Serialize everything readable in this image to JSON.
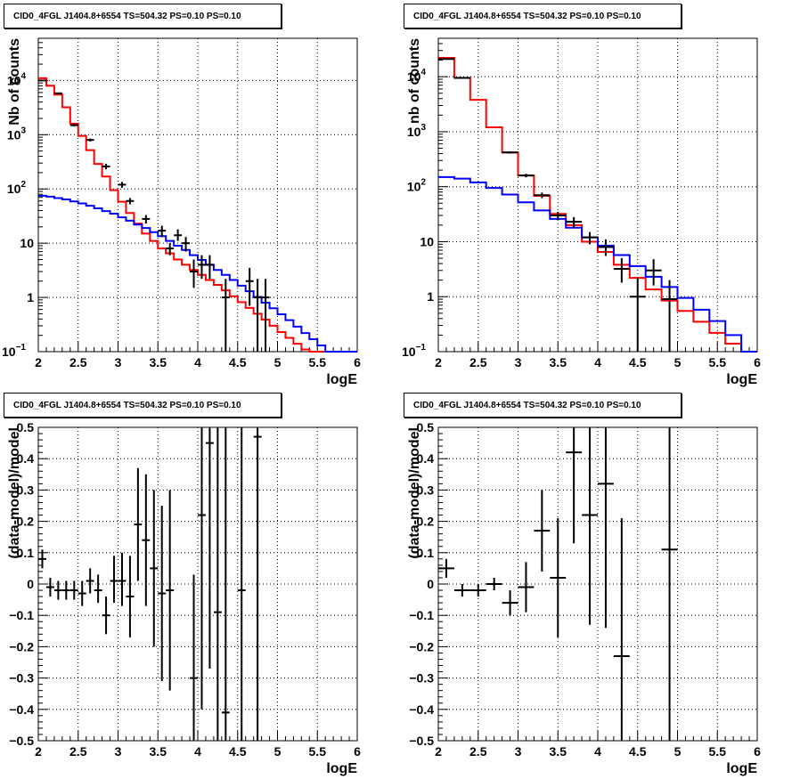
{
  "pads": [
    {
      "id": "p1",
      "title": "CID0_4FGL J1404.8+6554 TS=504.32 PS=0.10 PS=0.10",
      "chart_data": {
        "type": "line",
        "scale": "log",
        "xlabel": "logE",
        "ylabel": "Nb of counts",
        "xlim": [
          2,
          6
        ],
        "ylim": [
          0.1,
          60000
        ],
        "grid": true,
        "xticks": [
          "2",
          "2.5",
          "3",
          "3.5",
          "4",
          "4.5",
          "5",
          "5.5",
          "6"
        ],
        "yticks": [
          {
            "v": 0.1,
            "l": "10",
            "sup": "−1"
          },
          {
            "v": 1,
            "l": "1",
            "sup": ""
          },
          {
            "v": 10,
            "l": "10",
            "sup": ""
          },
          {
            "v": 100,
            "l": "10",
            "sup": "2"
          },
          {
            "v": 1000,
            "l": "10",
            "sup": "3"
          },
          {
            "v": 10000,
            "l": "10",
            "sup": "4"
          }
        ],
        "bin_width": 0.1,
        "series": [
          {
            "color": "#ff0000",
            "values": [
              11000,
              8000,
              5500,
              3200,
              1600,
              950,
              520,
              290,
              170,
              95,
              58,
              36,
              23,
              15,
              11,
              8,
              6.5,
              5,
              4,
              3.2,
              2.6,
              2.1,
              1.7,
              1.35,
              1.05,
              0.82,
              0.64,
              0.5,
              0.39,
              0.3,
              0.23,
              0.18,
              0.14,
              0.11,
              0.1,
              0.1
            ]
          },
          {
            "color": "#0000ff",
            "values": [
              75,
              72,
              68,
              64,
              59,
              54,
              49,
              44,
              39,
              35,
              30,
              26,
              22,
              19,
              16,
              13.5,
              11,
              9,
              7.5,
              6,
              4.9,
              4,
              3.2,
              2.6,
              2.1,
              1.65,
              1.3,
              1.02,
              0.8,
              0.63,
              0.49,
              0.38,
              0.29,
              0.22,
              0.17,
              0.13,
              0.1,
              0.1,
              0.1,
              0.1
            ]
          }
        ],
        "points": [
          {
            "x": 2.05,
            "y": 10000,
            "lo": 9800,
            "hi": 10200
          },
          {
            "x": 2.25,
            "y": 5800,
            "lo": 5650,
            "hi": 5950
          },
          {
            "x": 2.45,
            "y": 1500,
            "lo": 1420,
            "hi": 1580
          },
          {
            "x": 2.65,
            "y": 800,
            "lo": 750,
            "hi": 850
          },
          {
            "x": 2.85,
            "y": 260,
            "lo": 230,
            "hi": 290
          },
          {
            "x": 3.05,
            "y": 120,
            "lo": 105,
            "hi": 135
          },
          {
            "x": 3.15,
            "y": 60,
            "lo": 52,
            "hi": 68
          },
          {
            "x": 3.35,
            "y": 28,
            "lo": 23,
            "hi": 33
          },
          {
            "x": 3.55,
            "y": 17,
            "lo": 13,
            "hi": 21
          },
          {
            "x": 3.65,
            "y": 8,
            "lo": 6,
            "hi": 10
          },
          {
            "x": 3.75,
            "y": 14,
            "lo": 11,
            "hi": 18
          },
          {
            "x": 3.85,
            "y": 10,
            "lo": 7,
            "hi": 13
          },
          {
            "x": 3.95,
            "y": 3,
            "lo": 1.5,
            "hi": 5
          },
          {
            "x": 4.05,
            "y": 4,
            "lo": 2.2,
            "hi": 6
          },
          {
            "x": 4.15,
            "y": 4,
            "lo": 2.2,
            "hi": 6
          },
          {
            "x": 4.35,
            "y": 1,
            "lo": 0.1,
            "hi": 2.2
          },
          {
            "x": 4.65,
            "y": 2,
            "lo": 0.7,
            "hi": 3.5
          },
          {
            "x": 4.75,
            "y": 1,
            "lo": 0.1,
            "hi": 2.2
          },
          {
            "x": 4.85,
            "y": 1,
            "lo": 0.1,
            "hi": 2.2
          }
        ]
      }
    },
    {
      "id": "p2",
      "title": "CID0_4FGL J1404.8+6554 TS=504.32 PS=0.10 PS=0.10",
      "chart_data": {
        "type": "line",
        "scale": "log",
        "xlabel": "logE",
        "ylabel": "nb of counts",
        "xlim": [
          2,
          6
        ],
        "ylim": [
          0.1,
          50000
        ],
        "grid": true,
        "xticks": [
          "2",
          "2.5",
          "3",
          "3.5",
          "4",
          "4.5",
          "5",
          "5.5",
          "6"
        ],
        "yticks": [
          {
            "v": 0.1,
            "l": "10",
            "sup": "−1"
          },
          {
            "v": 1,
            "l": "1",
            "sup": ""
          },
          {
            "v": 10,
            "l": "10",
            "sup": ""
          },
          {
            "v": 100,
            "l": "10",
            "sup": "2"
          },
          {
            "v": 1000,
            "l": "10",
            "sup": "3"
          },
          {
            "v": 10000,
            "l": "10",
            "sup": "4"
          }
        ],
        "bin_width": 0.2,
        "series": [
          {
            "color": "#ff0000",
            "values": [
              22000,
              9500,
              3800,
              1200,
              420,
              160,
              68,
              32,
              20,
              10,
              6.5,
              3.8,
              2.2,
              1.35,
              0.85,
              0.55,
              0.35,
              0.22,
              0.14,
              0.1
            ]
          },
          {
            "color": "#0000ff",
            "values": [
              150,
              140,
              120,
              95,
              72,
              52,
              37,
              26,
              18,
              12,
              8.5,
              5.7,
              3.6,
              2.3,
              1.5,
              0.95,
              0.58,
              0.36,
              0.2,
              0.1
            ]
          }
        ],
        "points": [
          {
            "x": 2.1,
            "y": 21000,
            "lo": 20700,
            "hi": 21300
          },
          {
            "x": 2.3,
            "y": 9500,
            "lo": 9300,
            "hi": 9700
          },
          {
            "x": 2.9,
            "y": 420,
            "lo": 400,
            "hi": 440
          },
          {
            "x": 3.1,
            "y": 160,
            "lo": 148,
            "hi": 172
          },
          {
            "x": 3.3,
            "y": 70,
            "lo": 62,
            "hi": 78
          },
          {
            "x": 3.5,
            "y": 30,
            "lo": 25,
            "hi": 35
          },
          {
            "x": 3.7,
            "y": 23,
            "lo": 18,
            "hi": 28
          },
          {
            "x": 3.9,
            "y": 12,
            "lo": 9,
            "hi": 15
          },
          {
            "x": 4.1,
            "y": 8,
            "lo": 5.5,
            "hi": 11
          },
          {
            "x": 4.3,
            "y": 3.2,
            "lo": 1.8,
            "hi": 5
          },
          {
            "x": 4.5,
            "y": 1,
            "lo": 0.1,
            "hi": 2.2
          },
          {
            "x": 4.7,
            "y": 3,
            "lo": 1.6,
            "hi": 4.8
          },
          {
            "x": 4.9,
            "y": 0.9,
            "lo": 0.1,
            "hi": 2
          }
        ]
      }
    },
    {
      "id": "p3",
      "title": "CID0_4FGL J1404.8+6554 TS=504.32 PS=0.10 PS=0.10",
      "chart_data": {
        "type": "scatter",
        "scale": "linear",
        "xlabel": "logE",
        "ylabel": "(data-model)/model",
        "xlim": [
          2,
          6
        ],
        "ylim": [
          -0.5,
          0.5
        ],
        "grid": true,
        "xticks": [
          "2",
          "2.5",
          "3",
          "3.5",
          "4",
          "4.5",
          "5",
          "5.5",
          "6"
        ],
        "yticks": [
          {
            "v": -0.5,
            "l": "−0.5"
          },
          {
            "v": -0.4,
            "l": "−0.4"
          },
          {
            "v": -0.3,
            "l": "−0.3"
          },
          {
            "v": -0.2,
            "l": "−0.2"
          },
          {
            "v": -0.1,
            "l": "−0.1"
          },
          {
            "v": 0,
            "l": "0"
          },
          {
            "v": 0.1,
            "l": "0.1"
          },
          {
            "v": 0.2,
            "l": "0.2"
          },
          {
            "v": 0.3,
            "l": "0.3"
          },
          {
            "v": 0.4,
            "l": "0.4"
          },
          {
            "v": 0.5,
            "l": "0.5"
          }
        ],
        "bin_width": 0.1,
        "points": [
          {
            "x": 2.05,
            "y": 0.08,
            "lo": 0.05,
            "hi": 0.11
          },
          {
            "x": 2.15,
            "y": -0.01,
            "lo": -0.04,
            "hi": 0.02
          },
          {
            "x": 2.25,
            "y": -0.02,
            "lo": -0.05,
            "hi": 0.01
          },
          {
            "x": 2.35,
            "y": -0.02,
            "lo": -0.05,
            "hi": 0.01
          },
          {
            "x": 2.45,
            "y": -0.02,
            "lo": -0.05,
            "hi": 0.01
          },
          {
            "x": 2.55,
            "y": -0.03,
            "lo": -0.07,
            "hi": 0.01
          },
          {
            "x": 2.65,
            "y": 0.01,
            "lo": -0.03,
            "hi": 0.05
          },
          {
            "x": 2.75,
            "y": -0.02,
            "lo": -0.06,
            "hi": 0.03
          },
          {
            "x": 2.85,
            "y": -0.1,
            "lo": -0.16,
            "hi": -0.04
          },
          {
            "x": 2.95,
            "y": 0.01,
            "lo": -0.06,
            "hi": 0.09
          },
          {
            "x": 3.05,
            "y": 0.01,
            "lo": -0.07,
            "hi": 0.1
          },
          {
            "x": 3.15,
            "y": -0.04,
            "lo": -0.17,
            "hi": 0.09
          },
          {
            "x": 3.25,
            "y": 0.19,
            "lo": 0.01,
            "hi": 0.37
          },
          {
            "x": 3.35,
            "y": 0.14,
            "lo": -0.07,
            "hi": 0.35
          },
          {
            "x": 3.45,
            "y": 0.05,
            "lo": -0.2,
            "hi": 0.3
          },
          {
            "x": 3.55,
            "y": -0.03,
            "lo": -0.31,
            "hi": 0.25
          },
          {
            "x": 3.65,
            "y": -0.02,
            "lo": -0.34,
            "hi": 0.3
          },
          {
            "x": 3.95,
            "y": -0.3,
            "lo": -0.5,
            "hi": 0.03
          },
          {
            "x": 4.05,
            "y": 0.22,
            "lo": -0.4,
            "hi": 0.5
          },
          {
            "x": 4.15,
            "y": 0.45,
            "lo": -0.27,
            "hi": 0.5
          },
          {
            "x": 4.25,
            "y": -0.09,
            "lo": -0.5,
            "hi": 0.5
          },
          {
            "x": 4.35,
            "y": -0.41,
            "lo": -0.5,
            "hi": 0.5
          },
          {
            "x": 4.55,
            "y": -0.02,
            "lo": -0.5,
            "hi": 0.5
          },
          {
            "x": 4.75,
            "y": 0.47,
            "lo": -0.5,
            "hi": 0.5
          }
        ]
      }
    },
    {
      "id": "p4",
      "title": "CID0_4FGL J1404.8+6554 TS=504.32 PS=0.10 PS=0.10",
      "chart_data": {
        "type": "scatter",
        "scale": "linear",
        "xlabel": "logE",
        "ylabel": "(data-model)/model",
        "xlim": [
          2,
          6
        ],
        "ylim": [
          -0.5,
          0.5
        ],
        "grid": true,
        "xticks": [
          "2",
          "2.5",
          "3",
          "3.5",
          "4",
          "4.5",
          "5",
          "5.5",
          "6"
        ],
        "yticks": [
          {
            "v": -0.5,
            "l": "−0.5"
          },
          {
            "v": -0.4,
            "l": "−0.4"
          },
          {
            "v": -0.3,
            "l": "−0.3"
          },
          {
            "v": -0.2,
            "l": "−0.2"
          },
          {
            "v": -0.1,
            "l": "−0.1"
          },
          {
            "v": 0,
            "l": "0"
          },
          {
            "v": 0.1,
            "l": "0.1"
          },
          {
            "v": 0.2,
            "l": "0.2"
          },
          {
            "v": 0.3,
            "l": "0.3"
          },
          {
            "v": 0.4,
            "l": "0.4"
          },
          {
            "v": 0.5,
            "l": "0.5"
          }
        ],
        "bin_width": 0.2,
        "points": [
          {
            "x": 2.1,
            "y": 0.05,
            "lo": 0.02,
            "hi": 0.08
          },
          {
            "x": 2.3,
            "y": -0.02,
            "lo": -0.04,
            "hi": 0.0
          },
          {
            "x": 2.5,
            "y": -0.02,
            "lo": -0.04,
            "hi": 0.0
          },
          {
            "x": 2.7,
            "y": 0.0,
            "lo": -0.02,
            "hi": 0.02
          },
          {
            "x": 2.9,
            "y": -0.06,
            "lo": -0.1,
            "hi": -0.02
          },
          {
            "x": 3.1,
            "y": -0.01,
            "lo": -0.09,
            "hi": 0.07
          },
          {
            "x": 3.3,
            "y": 0.17,
            "lo": 0.04,
            "hi": 0.3
          },
          {
            "x": 3.5,
            "y": 0.02,
            "lo": -0.17,
            "hi": 0.21
          },
          {
            "x": 3.7,
            "y": 0.42,
            "lo": 0.13,
            "hi": 0.5
          },
          {
            "x": 3.9,
            "y": 0.22,
            "lo": -0.13,
            "hi": 0.5
          },
          {
            "x": 4.1,
            "y": 0.32,
            "lo": -0.14,
            "hi": 0.5
          },
          {
            "x": 4.3,
            "y": -0.23,
            "lo": -0.5,
            "hi": 0.21
          },
          {
            "x": 4.9,
            "y": 0.11,
            "lo": -0.5,
            "hi": 0.5
          }
        ]
      }
    }
  ]
}
